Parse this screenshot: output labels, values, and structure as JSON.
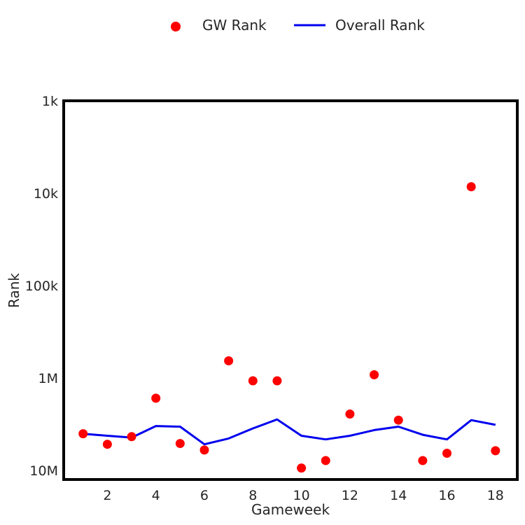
{
  "chart_data": {
    "type": "scatter",
    "xlabel": "Gameweek",
    "ylabel": "Rank",
    "x_ticks": [
      2,
      4,
      6,
      8,
      10,
      12,
      14,
      16,
      18
    ],
    "y_ticks": [
      {
        "value": 1000,
        "label": "1k"
      },
      {
        "value": 10000,
        "label": "10k"
      },
      {
        "value": 100000,
        "label": "100k"
      },
      {
        "value": 1000000,
        "label": "1M"
      },
      {
        "value": 10000000,
        "label": "10M"
      }
    ],
    "y_scale": "log",
    "y_inverted": true,
    "xlim": [
      0.2,
      18.9
    ],
    "ylim": [
      1000,
      12500000
    ],
    "legend": "top-center, outside plot",
    "grid": false,
    "colors": {
      "gw": "#ff0000",
      "overall": "#0000ee",
      "frame": "#000000"
    },
    "series": [
      {
        "name": "GW Rank",
        "kind": "scatter",
        "x": [
          1,
          2,
          3,
          4,
          5,
          6,
          7,
          8,
          9,
          10,
          11,
          12,
          13,
          14,
          15,
          16,
          17,
          18
        ],
        "values": [
          4000000,
          5200000,
          4300000,
          1650000,
          5100000,
          6000000,
          650000,
          1070000,
          1070000,
          9400000,
          7800000,
          2450000,
          920000,
          2850000,
          7800000,
          6500000,
          8500,
          6100000
        ]
      },
      {
        "name": "Overall Rank",
        "kind": "line",
        "x": [
          1,
          2,
          3,
          4,
          5,
          6,
          7,
          8,
          9,
          10,
          11,
          12,
          13,
          14,
          15,
          16,
          17,
          18
        ],
        "values": [
          4000000,
          4200000,
          4400000,
          3300000,
          3350000,
          5200000,
          4500000,
          3500000,
          2800000,
          4200000,
          4600000,
          4200000,
          3650000,
          3350000,
          4100000,
          4600000,
          2850000,
          3200000
        ]
      }
    ]
  }
}
